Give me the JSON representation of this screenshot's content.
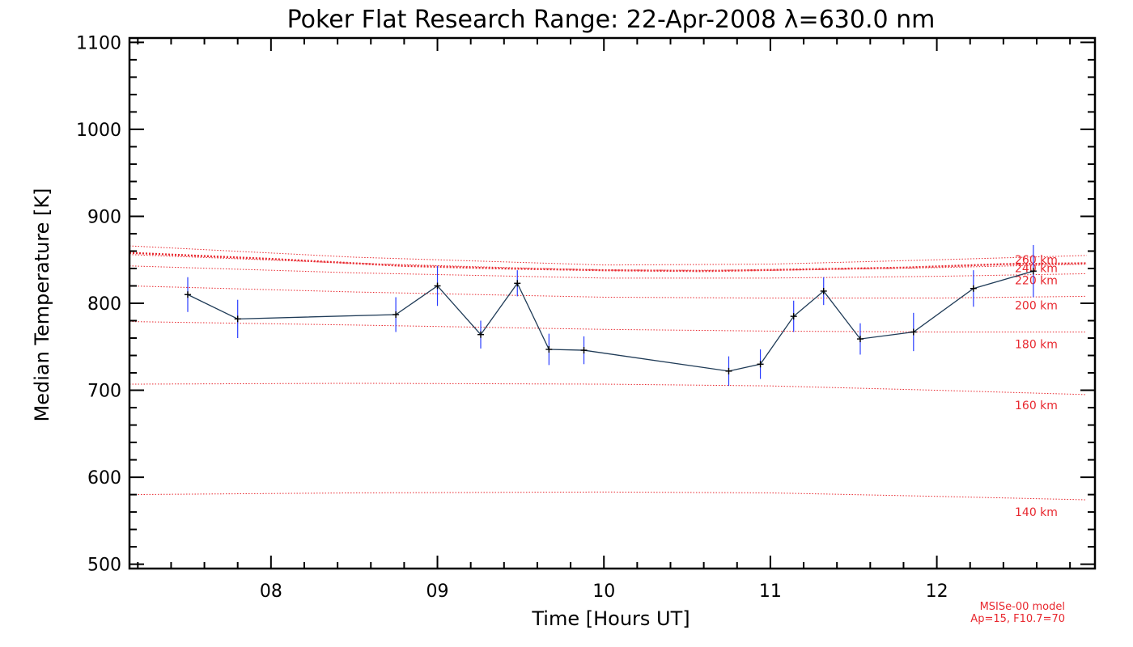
{
  "chart_data": {
    "type": "line",
    "title": "Poker Flat Research Range: 22-Apr-2008 λ=630.0 nm",
    "xlabel": "Time [Hours UT]",
    "ylabel": "Median Temperature [K]",
    "xlim": [
      7.15,
      12.95
    ],
    "ylim": [
      495,
      1105
    ],
    "x_ticks": [
      8,
      9,
      10,
      11,
      12
    ],
    "x_tick_labels": [
      "08",
      "09",
      "10",
      "11",
      "12"
    ],
    "y_ticks": [
      500,
      600,
      700,
      800,
      900,
      1000,
      1100
    ],
    "y_tick_labels": [
      "500",
      "600",
      "700",
      "800",
      "900",
      "1000",
      "1100"
    ],
    "grid": false,
    "colors": {
      "measurement_line": "#1f3b57",
      "error_bars": "#2a3dff",
      "markers": "#000000",
      "model": "#e8282f"
    },
    "measurements": {
      "x": [
        7.5,
        7.8,
        8.75,
        9.0,
        9.26,
        9.48,
        9.67,
        9.88,
        10.75,
        10.94,
        11.14,
        11.32,
        11.54,
        11.86,
        12.22,
        12.58
      ],
      "y": [
        810,
        782,
        787,
        820,
        764,
        823,
        747,
        746,
        722,
        730,
        785,
        814,
        759,
        767,
        817,
        837
      ],
      "error": [
        20,
        22,
        20,
        23,
        16,
        15,
        18,
        16,
        17,
        17,
        18,
        16,
        18,
        22,
        21,
        30
      ]
    },
    "model_curves": [
      {
        "label": "140 km",
        "x": [
          7.15,
          8.5,
          10.0,
          11.0,
          12.0,
          12.9
        ],
        "y": [
          580,
          582,
          583,
          582,
          578,
          574
        ]
      },
      {
        "label": "160 km",
        "x": [
          7.15,
          8.5,
          10.0,
          11.0,
          12.0,
          12.9
        ],
        "y": [
          707,
          708,
          707,
          705,
          700,
          695
        ]
      },
      {
        "label": "180 km",
        "x": [
          7.15,
          8.5,
          10.0,
          11.0,
          12.0,
          12.9
        ],
        "y": [
          779,
          775,
          770,
          768,
          767,
          767
        ]
      },
      {
        "label": "200 km",
        "x": [
          7.15,
          8.5,
          10.0,
          11.0,
          12.0,
          12.9
        ],
        "y": [
          820,
          813,
          807,
          806,
          806,
          808
        ]
      },
      {
        "label": "220 km",
        "x": [
          7.15,
          8.5,
          10.0,
          11.0,
          12.0,
          12.9
        ],
        "y": [
          843,
          835,
          829,
          829,
          831,
          834
        ]
      },
      {
        "label": "240 km",
        "x": [
          7.15,
          8.5,
          10.0,
          11.0,
          12.0,
          12.9
        ],
        "y": [
          856,
          846,
          838,
          838,
          841,
          845
        ]
      },
      {
        "label": "260 km",
        "x": [
          7.15,
          8.5,
          10.0,
          11.0,
          12.0,
          12.9
        ],
        "y": [
          866,
          853,
          844,
          845,
          850,
          855
        ]
      }
    ],
    "model_thick_curve": {
      "x": [
        7.15,
        8.0,
        8.8,
        9.4,
        10.0,
        10.6,
        11.2,
        11.8,
        12.4,
        12.9
      ],
      "y": [
        858,
        851,
        843,
        840,
        838,
        837,
        839,
        841,
        845,
        846
      ]
    },
    "model_note": [
      "MSISe-00 model",
      "Ap=15, F10.7=70"
    ]
  }
}
